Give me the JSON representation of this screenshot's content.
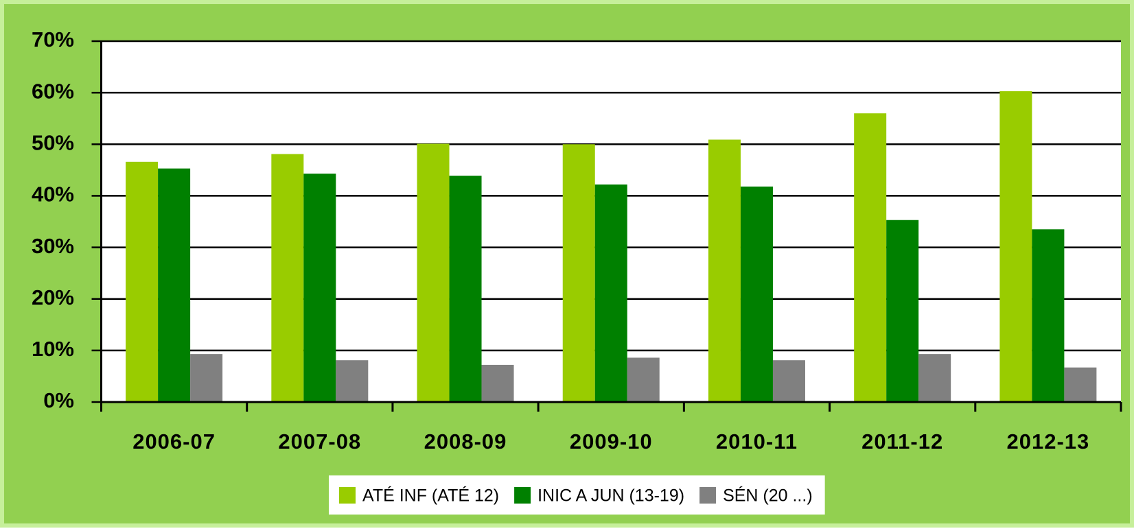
{
  "chart_data": {
    "type": "bar",
    "categories": [
      "2006-07",
      "2007-08",
      "2008-09",
      "2009-10",
      "2010-11",
      "2011-12",
      "2012-13"
    ],
    "series": [
      {
        "name": "ATÉ INF (ATÉ 12)",
        "color": "#99cc00",
        "values": [
          46.6,
          48.1,
          50.1,
          50,
          50.9,
          56,
          60.3
        ]
      },
      {
        "name": "INIC A JUN (13-19)",
        "color": "#008000",
        "values": [
          45.3,
          44.3,
          43.9,
          42.2,
          41.8,
          35.3,
          33.5
        ]
      },
      {
        "name": "SÉN (20 ...)",
        "color": "#808080",
        "values": [
          9.3,
          8.1,
          7.2,
          8.6,
          8.1,
          9.3,
          6.7
        ]
      }
    ],
    "ylim": [
      0,
      70
    ],
    "yticks": [
      {
        "value": 0,
        "label": "0%"
      },
      {
        "value": 10,
        "label": "10%"
      },
      {
        "value": 20,
        "label": "20%"
      },
      {
        "value": 30,
        "label": "30%"
      },
      {
        "value": 40,
        "label": "40%"
      },
      {
        "value": 50,
        "label": "50%"
      },
      {
        "value": 60,
        "label": "60%"
      },
      {
        "value": 70,
        "label": "70%"
      }
    ],
    "grid": true,
    "legend": "bottom"
  }
}
